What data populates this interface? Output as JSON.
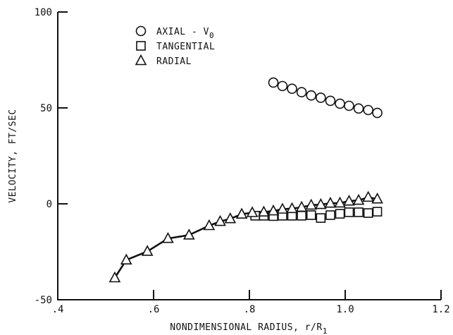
{
  "chart_data": {
    "type": "scatter",
    "title": "",
    "xlabel": "NONDIMENSIONAL RADIUS, r/R",
    "xlabel_subscript": "1",
    "ylabel": "VELOCITY, FT/SEC",
    "xlim": [
      0.4,
      1.2
    ],
    "ylim": [
      -50,
      100
    ],
    "xticks": [
      0.4,
      0.6,
      0.8,
      1.0,
      1.2
    ],
    "xtick_labels": [
      ".4",
      ".6",
      ".8",
      "1.0",
      "1.2"
    ],
    "yticks": [
      -50,
      0,
      50,
      100
    ],
    "ytick_labels": [
      "-50",
      "0",
      "50",
      "100"
    ],
    "grid": false,
    "legend_position": "top-left",
    "series": [
      {
        "name": "AXIAL - V",
        "name_subscript": "0",
        "marker": "circle",
        "x": [
          0.85,
          0.869,
          0.889,
          0.909,
          0.929,
          0.949,
          0.969,
          0.989,
          1.008,
          1.028,
          1.048,
          1.067
        ],
        "y": [
          63.2,
          61.4,
          60.0,
          58.2,
          56.5,
          55.3,
          53.7,
          52.2,
          51.1,
          49.7,
          48.9,
          47.4
        ]
      },
      {
        "name": "TANGENTIAL",
        "marker": "square",
        "x": [
          0.812,
          0.83,
          0.85,
          0.869,
          0.889,
          0.909,
          0.929,
          0.949,
          0.969,
          0.989,
          1.008,
          1.028,
          1.048,
          1.067
        ],
        "y": [
          -6.2,
          -6.2,
          -6.4,
          -6.2,
          -6.2,
          -6.2,
          -5.9,
          -7.4,
          -5.9,
          -5.2,
          -4.4,
          -4.4,
          -4.8,
          -4.1
        ]
      },
      {
        "name": "RADIAL",
        "marker": "triangle",
        "connected": true,
        "x": [
          0.519,
          0.543,
          0.587,
          0.63,
          0.674,
          0.716,
          0.739,
          0.76,
          0.784,
          0.806,
          0.83,
          0.85,
          0.869,
          0.889,
          0.909,
          0.929,
          0.949,
          0.969,
          0.989,
          1.008,
          1.028,
          1.048,
          1.067
        ],
        "y": [
          -38.6,
          -29.3,
          -24.8,
          -18.1,
          -16.3,
          -11.4,
          -9.2,
          -7.8,
          -5.4,
          -4.6,
          -4.3,
          -3.7,
          -2.8,
          -2.5,
          -1.8,
          -0.7,
          -0.4,
          0.3,
          0.4,
          1.4,
          1.8,
          3.4,
          2.5
        ]
      }
    ]
  }
}
